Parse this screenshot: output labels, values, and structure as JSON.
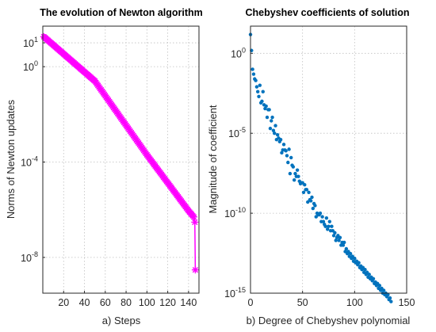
{
  "colors": {
    "newton": "#ff00ff",
    "cheb": "#0072bd"
  },
  "chart_data": [
    {
      "type": "line",
      "title": "The evolution of Newton algorithm",
      "xlabel": "a) Steps",
      "ylabel": "Norms of Newton updates",
      "xlim": [
        0,
        150
      ],
      "ylim_log10": [
        -9.5,
        1.7
      ],
      "y_scale": "log",
      "grid": true,
      "marker": "asterisk",
      "xticks": [
        20,
        40,
        60,
        80,
        100,
        120,
        140
      ],
      "yticks": [
        {
          "value": 10,
          "base": "10",
          "exp": "1"
        },
        {
          "value": 1,
          "base": "10",
          "exp": "0"
        },
        {
          "value": 0.0001,
          "base": "10",
          "exp": "-4"
        },
        {
          "value": 1e-08,
          "base": "10",
          "exp": "-8"
        }
      ],
      "series": [
        {
          "x": [
            1,
            50,
            100,
            140,
            145,
            146,
            146.5
          ],
          "y": [
            18,
            0.25,
            0.0002,
            9e-07,
            5e-07,
            3e-07,
            3e-09
          ]
        }
      ]
    },
    {
      "type": "scatter",
      "title": "Chebyshev coefficients of solution",
      "xlabel": "b) Degree of Chebyshev polynomial",
      "ylabel": "Magnitude of coefficient",
      "xlim": [
        0,
        150
      ],
      "ylim_log10": [
        -15,
        1.7
      ],
      "y_scale": "log",
      "grid": true,
      "marker": "dot",
      "xticks": [
        0,
        50,
        100,
        150
      ],
      "yticks": [
        {
          "value": 1,
          "base": "10",
          "exp": "0"
        },
        {
          "value": 1e-05,
          "base": "10",
          "exp": "-5"
        },
        {
          "value": 1e-10,
          "base": "10",
          "exp": "-10"
        },
        {
          "value": 1e-15,
          "base": "10",
          "exp": "-15"
        }
      ],
      "series": [
        {
          "x": [
            0,
            1,
            2,
            3,
            4,
            5,
            6,
            7,
            8,
            9,
            10,
            11,
            12,
            13,
            14,
            15,
            16,
            17,
            18,
            19,
            20,
            21,
            22,
            23,
            24,
            25,
            26,
            27,
            28,
            29,
            30,
            31,
            32,
            33,
            34,
            35,
            36,
            37,
            38,
            39,
            40,
            41,
            42,
            43,
            44,
            45,
            46,
            47,
            48,
            49,
            50,
            51,
            52,
            53,
            54,
            55,
            56,
            57,
            58,
            59,
            60,
            61,
            62,
            63,
            64,
            65,
            66,
            67,
            68,
            69,
            70,
            71,
            72,
            73,
            74,
            75,
            76,
            77,
            78,
            79,
            80,
            81,
            82,
            83,
            84,
            85,
            86,
            87,
            88,
            89,
            90,
            91,
            92,
            93,
            94,
            95,
            96,
            97,
            98,
            99,
            100,
            101,
            102,
            103,
            104,
            105,
            106,
            107,
            108,
            109,
            110,
            111,
            112,
            113,
            114,
            115,
            116,
            117,
            118,
            119,
            120,
            121,
            122,
            123,
            124,
            125,
            126,
            127,
            128,
            129,
            130,
            131,
            132,
            133,
            134,
            135
          ],
          "y": [
            15,
            1.5,
            0.1,
            0.05,
            0.025,
            0.02,
            0.008,
            0.004,
            0.002,
            0.01,
            0.0008,
            0.001,
            0.004,
            0.0006,
            0.00035,
            0.0005,
            0.0001,
            0.0003,
            0.0003,
            2e-05,
            6e-05,
            0.0001,
            1.5e-05,
            1e-05,
            3e-05,
            4e-06,
            8e-06,
            5e-06,
            3e-06,
            4e-06,
            6e-07,
            9e-07,
            2e-06,
            9e-07,
            8e-07,
            4e-07,
            1.5e-07,
            1e-06,
            3e-08,
            3e-07,
            1e-07,
            8e-08,
            1.2e-08,
            3e-08,
            2e-08,
            5e-08,
            2e-08,
            1e-08,
            7e-09,
            8e-09,
            8e-09,
            2e-09,
            6e-09,
            3e-09,
            3e-09,
            5e-10,
            2e-09,
            7e-10,
            6e-10,
            1e-09,
            2e-10,
            4e-10,
            3e-10,
            6e-11,
            1e-10,
            8e-11,
            8e-11,
            1e-10,
            3e-11,
            6e-11,
            3e-11,
            2e-11,
            1.5e-11,
            5e-11,
            1e-11,
            1.5e-11,
            3e-11,
            8e-12,
            1.5e-11,
            8e-12,
            4e-12,
            6e-12,
            2e-12,
            3e-12,
            4e-12,
            2e-12,
            3e-12,
            1e-12,
            1.5e-12,
            1e-12,
            1.5e-12,
            4e-13,
            6e-13,
            3e-13,
            4e-13,
            2e-13,
            3e-13,
            1.5e-13,
            2e-13,
            1e-13,
            1.5e-13,
            8e-14,
            1e-13,
            6e-14,
            8e-14,
            4e-14,
            5e-14,
            3e-14,
            4e-14,
            2e-14,
            3e-14,
            1.5e-14,
            2e-14,
            1e-14,
            1.5e-14,
            8e-15,
            1e-14,
            6e-15,
            8e-15,
            4e-15,
            5e-15,
            3e-15,
            4e-15,
            2e-15,
            3e-15,
            1.5e-15,
            2e-15,
            1e-15,
            1.5e-15,
            8e-16,
            1e-15,
            6e-16,
            8e-16,
            4e-16,
            5e-16,
            3e-16
          ]
        }
      ]
    }
  ]
}
